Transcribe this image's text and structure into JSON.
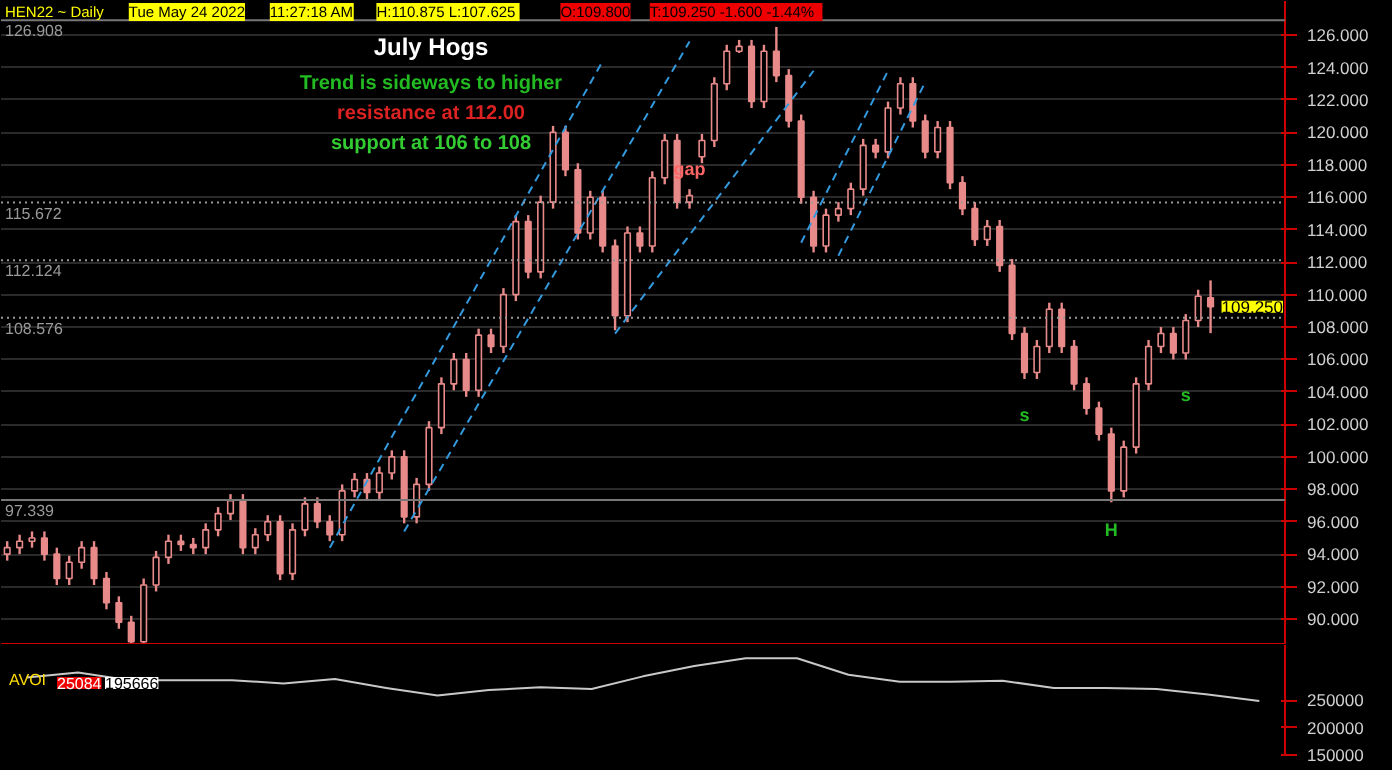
{
  "chart_data": [
    {
      "type": "candlestick",
      "title": "July Hogs",
      "categories": [
        null,
        null,
        null,
        null,
        null,
        null,
        null,
        null,
        null,
        null,
        null,
        null,
        null,
        null,
        null,
        null,
        null,
        null,
        null,
        null,
        null,
        null,
        null,
        null,
        null,
        null,
        null,
        null,
        null,
        null,
        null,
        null,
        null,
        null,
        null,
        null,
        null,
        null,
        null,
        null,
        null,
        null,
        null,
        null,
        null,
        null,
        null,
        null,
        null,
        null,
        null,
        null,
        null,
        null,
        null,
        null,
        null,
        null,
        null,
        null,
        null,
        null,
        null,
        null,
        null,
        null,
        null,
        null,
        null,
        null,
        null,
        null,
        null,
        null,
        null,
        null,
        null,
        null,
        null,
        null,
        null,
        null,
        null,
        null,
        null,
        null,
        null,
        null,
        null,
        null,
        null,
        null,
        null,
        null,
        null,
        null,
        null,
        null
      ],
      "ohlc": [
        [
          94.0,
          94.8,
          93.6,
          94.4
        ],
        [
          94.4,
          95.2,
          94.0,
          94.8
        ],
        [
          94.8,
          95.4,
          94.4,
          95.0
        ],
        [
          95.0,
          95.4,
          93.6,
          94.0
        ],
        [
          94.0,
          94.4,
          92.1,
          92.5
        ],
        [
          92.5,
          93.9,
          92.1,
          93.5
        ],
        [
          93.5,
          94.8,
          93.1,
          94.4
        ],
        [
          94.4,
          94.8,
          92.1,
          92.5
        ],
        [
          92.5,
          92.9,
          90.6,
          91.0
        ],
        [
          91.0,
          91.4,
          89.4,
          89.8
        ],
        [
          89.8,
          90.2,
          88.2,
          88.6
        ],
        [
          88.6,
          92.5,
          88.2,
          92.1
        ],
        [
          92.1,
          94.2,
          91.7,
          93.8
        ],
        [
          93.8,
          95.2,
          93.4,
          94.8
        ],
        [
          94.8,
          95.2,
          94.2,
          94.6
        ],
        [
          94.6,
          95.0,
          94.0,
          94.4
        ],
        [
          94.4,
          95.9,
          94.0,
          95.5
        ],
        [
          95.5,
          96.9,
          95.1,
          96.5
        ],
        [
          96.5,
          97.7,
          96.1,
          97.3
        ],
        [
          97.3,
          97.7,
          94.0,
          94.4
        ],
        [
          94.4,
          95.6,
          94.0,
          95.2
        ],
        [
          95.2,
          96.4,
          94.8,
          96.0
        ],
        [
          96.0,
          96.4,
          92.4,
          92.8
        ],
        [
          92.8,
          95.9,
          92.4,
          95.5
        ],
        [
          95.5,
          97.5,
          95.1,
          97.1
        ],
        [
          97.1,
          97.5,
          95.6,
          96.0
        ],
        [
          96.0,
          96.4,
          94.8,
          95.2
        ],
        [
          95.2,
          98.3,
          94.8,
          97.9
        ],
        [
          97.9,
          99.0,
          97.5,
          98.6
        ],
        [
          98.6,
          99.0,
          97.4,
          97.8
        ],
        [
          97.8,
          99.4,
          97.4,
          99.0
        ],
        [
          99.0,
          100.4,
          98.6,
          100.0
        ],
        [
          100.0,
          100.4,
          95.9,
          96.3
        ],
        [
          96.3,
          98.7,
          95.9,
          98.3
        ],
        [
          98.3,
          102.2,
          97.9,
          101.8
        ],
        [
          101.8,
          104.9,
          101.4,
          104.5
        ],
        [
          104.5,
          106.4,
          104.1,
          106.0
        ],
        [
          106.0,
          106.4,
          103.7,
          104.1
        ],
        [
          104.1,
          107.9,
          103.7,
          107.5
        ],
        [
          107.5,
          107.9,
          106.4,
          106.8
        ],
        [
          106.8,
          110.4,
          106.4,
          110.0
        ],
        [
          110.0,
          114.9,
          109.6,
          114.5
        ],
        [
          114.5,
          114.9,
          111.0,
          111.4
        ],
        [
          111.4,
          116.1,
          111.0,
          115.7
        ],
        [
          115.7,
          120.4,
          115.3,
          120.0
        ],
        [
          120.0,
          120.4,
          117.3,
          117.7
        ],
        [
          117.7,
          118.1,
          113.4,
          113.8
        ],
        [
          113.8,
          116.4,
          113.4,
          116.0
        ],
        [
          116.0,
          116.4,
          112.6,
          113.0
        ],
        [
          113.0,
          113.4,
          107.8,
          108.7
        ],
        [
          108.7,
          114.2,
          108.3,
          113.8
        ],
        [
          113.8,
          114.2,
          112.6,
          113.0
        ],
        [
          113.0,
          117.6,
          112.6,
          117.2
        ],
        [
          117.2,
          119.9,
          116.8,
          119.5
        ],
        [
          119.5,
          119.9,
          115.3,
          115.7
        ],
        [
          115.7,
          116.5,
          115.3,
          116.1
        ],
        [
          118.5,
          119.9,
          118.1,
          119.5
        ],
        [
          119.5,
          123.4,
          119.1,
          123.0
        ],
        [
          123.0,
          125.4,
          122.6,
          125.0
        ],
        [
          125.0,
          125.7,
          124.9,
          125.3
        ],
        [
          125.3,
          125.7,
          121.5,
          121.9
        ],
        [
          121.9,
          125.4,
          121.5,
          125.0
        ],
        [
          125.0,
          126.5,
          123.1,
          123.5
        ],
        [
          123.5,
          123.9,
          120.3,
          120.7
        ],
        [
          120.7,
          121.1,
          115.6,
          116.0
        ],
        [
          116.0,
          116.4,
          112.6,
          113.0
        ],
        [
          113.0,
          115.3,
          112.6,
          114.9
        ],
        [
          114.9,
          115.7,
          114.5,
          115.3
        ],
        [
          115.3,
          116.9,
          114.9,
          116.5
        ],
        [
          116.5,
          119.6,
          116.1,
          119.2
        ],
        [
          119.2,
          119.6,
          118.4,
          118.8
        ],
        [
          118.8,
          121.9,
          118.4,
          121.5
        ],
        [
          121.5,
          123.4,
          121.1,
          123.0
        ],
        [
          123.0,
          123.4,
          120.3,
          120.7
        ],
        [
          120.7,
          121.1,
          118.4,
          118.8
        ],
        [
          118.8,
          120.7,
          118.4,
          120.3
        ],
        [
          120.3,
          120.7,
          116.5,
          116.9
        ],
        [
          116.9,
          117.3,
          114.9,
          115.3
        ],
        [
          115.3,
          115.7,
          113.0,
          113.4
        ],
        [
          113.4,
          114.6,
          113.0,
          114.2
        ],
        [
          114.2,
          114.6,
          111.4,
          111.8
        ],
        [
          111.8,
          112.2,
          107.2,
          107.6
        ],
        [
          107.6,
          108.0,
          104.8,
          105.2
        ],
        [
          105.2,
          107.2,
          104.8,
          106.8
        ],
        [
          106.8,
          109.5,
          106.4,
          109.1
        ],
        [
          109.1,
          109.5,
          106.4,
          106.8
        ],
        [
          106.8,
          107.2,
          104.1,
          104.5
        ],
        [
          104.5,
          104.9,
          102.6,
          103.0
        ],
        [
          103.0,
          103.4,
          101.0,
          101.4
        ],
        [
          101.4,
          101.8,
          97.2,
          97.9
        ],
        [
          97.9,
          101.0,
          97.5,
          100.6
        ],
        [
          100.6,
          104.9,
          100.2,
          104.5
        ],
        [
          104.5,
          107.2,
          104.1,
          106.8
        ],
        [
          106.8,
          108.0,
          106.4,
          107.6
        ],
        [
          107.6,
          108.0,
          106.0,
          106.4
        ],
        [
          106.4,
          108.8,
          106.0,
          108.4
        ],
        [
          108.4,
          110.3,
          108.0,
          109.9
        ],
        [
          109.8,
          110.875,
          107.625,
          109.25
        ]
      ],
      "color": "#e88a8a",
      "series": [
        {
          "type": "line",
          "color": "#3399dd",
          "line_style": "dashed",
          "values": [
            null,
            null,
            null,
            null,
            null,
            null,
            null,
            null,
            null,
            null,
            null,
            null,
            null,
            null,
            null,
            null,
            null,
            null,
            null,
            null,
            null,
            null,
            null,
            null,
            null,
            null,
            94.4,
            null,
            null,
            null,
            null,
            null,
            null,
            null,
            null,
            null,
            null,
            null,
            null,
            null,
            null,
            null,
            null,
            null,
            null,
            null,
            null,
            null,
            124.4,
            null,
            null,
            null,
            null,
            null,
            null,
            null,
            null,
            null,
            null,
            null,
            null,
            null,
            null,
            null,
            null,
            null,
            null,
            null,
            null,
            null,
            null,
            null,
            null,
            null,
            null,
            null,
            null,
            null,
            null,
            null,
            null,
            null,
            null,
            null,
            null,
            null,
            null,
            null,
            null,
            null,
            null,
            null,
            null,
            null,
            null,
            null,
            null,
            null
          ]
        },
        {
          "type": "line",
          "color": "#3399dd",
          "line_style": "dashed",
          "values": [
            null,
            null,
            null,
            null,
            null,
            null,
            null,
            null,
            null,
            null,
            null,
            null,
            null,
            null,
            null,
            null,
            null,
            null,
            null,
            null,
            null,
            null,
            null,
            null,
            null,
            null,
            null,
            null,
            null,
            null,
            null,
            null,
            95.4,
            null,
            null,
            null,
            null,
            null,
            null,
            null,
            null,
            null,
            null,
            null,
            null,
            null,
            null,
            null,
            null,
            null,
            null,
            null,
            null,
            null,
            null,
            125.6,
            null,
            null,
            null,
            null,
            null,
            null,
            null,
            null,
            null,
            null,
            null,
            null,
            null,
            null,
            null,
            null,
            null,
            null,
            null,
            null,
            null,
            null,
            null,
            null,
            null,
            null,
            null,
            null,
            null,
            null,
            null,
            null,
            null,
            null,
            null,
            null,
            null,
            null,
            null,
            null,
            null,
            null
          ]
        },
        {
          "type": "line",
          "color": "#3399dd",
          "line_style": "dashed",
          "values": [
            null,
            null,
            null,
            null,
            null,
            null,
            null,
            null,
            null,
            null,
            null,
            null,
            null,
            null,
            null,
            null,
            null,
            null,
            null,
            null,
            null,
            null,
            null,
            null,
            null,
            null,
            null,
            null,
            null,
            null,
            null,
            null,
            null,
            null,
            null,
            null,
            null,
            null,
            null,
            null,
            null,
            null,
            null,
            null,
            null,
            null,
            null,
            null,
            null,
            107.6,
            null,
            null,
            null,
            null,
            null,
            null,
            null,
            null,
            null,
            null,
            null,
            null,
            null,
            null,
            null,
            123.8,
            null,
            null,
            null,
            null,
            null,
            null,
            null,
            null,
            null,
            null,
            null,
            null,
            null,
            null,
            null,
            null,
            null,
            null,
            null,
            null,
            null,
            null,
            null,
            null,
            null,
            null,
            null,
            null,
            null,
            null,
            null,
            null
          ]
        },
        {
          "type": "line",
          "color": "#3399dd",
          "line_style": "dashed",
          "values": [
            null,
            null,
            null,
            null,
            null,
            null,
            null,
            null,
            null,
            null,
            null,
            null,
            null,
            null,
            null,
            null,
            null,
            null,
            null,
            null,
            null,
            null,
            null,
            null,
            null,
            null,
            null,
            null,
            null,
            null,
            null,
            null,
            null,
            null,
            null,
            null,
            null,
            null,
            null,
            null,
            null,
            null,
            null,
            null,
            null,
            null,
            null,
            null,
            null,
            null,
            null,
            null,
            null,
            null,
            null,
            null,
            null,
            null,
            null,
            null,
            null,
            null,
            null,
            null,
            113.2,
            null,
            null,
            null,
            null,
            null,
            null,
            123.8,
            null,
            null,
            null,
            null,
            null,
            null,
            null,
            null,
            null,
            null,
            null,
            null,
            null,
            null,
            null,
            null,
            null,
            null,
            null,
            null,
            null,
            null,
            null,
            null,
            null,
            null
          ]
        },
        {
          "type": "line",
          "color": "#3399dd",
          "line_style": "dashed",
          "values": [
            null,
            null,
            null,
            null,
            null,
            null,
            null,
            null,
            null,
            null,
            null,
            null,
            null,
            null,
            null,
            null,
            null,
            null,
            null,
            null,
            null,
            null,
            null,
            null,
            null,
            null,
            null,
            null,
            null,
            null,
            null,
            null,
            null,
            null,
            null,
            null,
            null,
            null,
            null,
            null,
            null,
            null,
            null,
            null,
            null,
            null,
            null,
            null,
            null,
            null,
            null,
            null,
            null,
            null,
            null,
            null,
            null,
            null,
            null,
            null,
            null,
            null,
            null,
            null,
            null,
            null,
            null,
            112.4,
            null,
            null,
            null,
            null,
            null,
            null,
            123.1,
            null,
            null,
            null,
            null,
            null,
            null,
            null,
            null,
            null,
            null,
            null,
            null,
            null,
            null,
            null,
            null,
            null,
            null,
            null,
            null,
            null,
            null,
            null
          ]
        }
      ],
      "ylim": [
        88.4,
        128.1
      ],
      "yticks": [
        {
          "value": 90,
          "label": "90.000"
        },
        {
          "value": 92,
          "label": "92.000"
        },
        {
          "value": 94,
          "label": "94.000"
        },
        {
          "value": 96,
          "label": "96.000"
        },
        {
          "value": 98,
          "label": "98.000"
        },
        {
          "value": 100,
          "label": "100.000"
        },
        {
          "value": 102,
          "label": "102.000"
        },
        {
          "value": 104,
          "label": "104.000"
        },
        {
          "value": 106,
          "label": "106.000"
        },
        {
          "value": 108,
          "label": "108.000"
        },
        {
          "value": 110,
          "label": "110.000"
        },
        {
          "value": 112,
          "label": "112.000"
        },
        {
          "value": 114,
          "label": "114.000"
        },
        {
          "value": 116,
          "label": "116.000"
        },
        {
          "value": 118,
          "label": "118.000"
        },
        {
          "value": 120,
          "label": "120.000"
        },
        {
          "value": 122,
          "label": "122.000"
        },
        {
          "value": 124,
          "label": "124.000"
        },
        {
          "value": 126,
          "label": "126.000"
        }
      ],
      "tick_labels": "y",
      "grid": "y",
      "ref_lines": [
        {
          "axis": "y",
          "value": 126.908,
          "label": "126.908",
          "color": "#777777"
        },
        {
          "axis": "y",
          "value": 115.672,
          "label": "115.672",
          "color": "#999999",
          "line_style": "dotted"
        },
        {
          "axis": "y",
          "value": 112.124,
          "label": "112.124",
          "color": "#999999",
          "line_style": "dotted"
        },
        {
          "axis": "y",
          "value": 108.576,
          "label": "108.576",
          "color": "#999999",
          "line_style": "dotted"
        },
        {
          "axis": "y",
          "value": 97.339,
          "label": "97.339",
          "color": "#777777"
        }
      ],
      "annotations": [
        "HEN22 ~ Daily",
        "Tue May 24 2022",
        "11:27:18 AM",
        "H:110.875  L:107.625",
        "O:109.800",
        "T:109.250  -1.600  -1.44%",
        "Trend is sideways to higher",
        "resistance at 112.00",
        "support at 106 to 108",
        "109.250",
        "gap",
        "s",
        "s",
        "H"
      ]
    },
    {
      "type": "line",
      "categories": [
        null,
        null,
        null,
        null,
        null,
        null,
        null,
        null,
        null,
        null,
        null,
        null,
        null,
        null,
        null,
        null,
        null,
        null,
        null,
        null,
        null,
        null,
        null,
        null,
        null
      ],
      "values": [
        291000,
        300000,
        286000,
        286000,
        286000,
        280000,
        288000,
        272000,
        258000,
        268000,
        273000,
        270000,
        293000,
        312000,
        326000,
        326000,
        296000,
        283000,
        283000,
        285000,
        272000,
        272000,
        270000,
        260000,
        248000
      ],
      "color": "#c8c8c8",
      "ylim": [
        150000,
        350000
      ],
      "yticks": [
        150000,
        200000,
        250000
      ],
      "tick_labels": "y",
      "annotations": [
        "AVOI",
        "25084",
        "195666"
      ]
    }
  ]
}
